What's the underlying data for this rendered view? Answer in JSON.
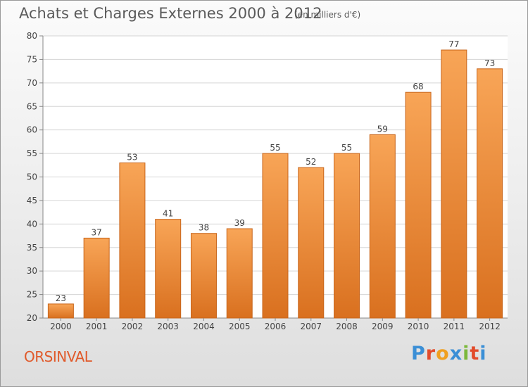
{
  "header": {
    "title": "Achats et Charges Externes 2000 à 2012",
    "subtitle": "(en milliers d'€)"
  },
  "footer": {
    "commune": "ORSINVAL",
    "brand": "Proxiti",
    "brand_letters": [
      "P",
      "r",
      "o",
      "x",
      "i",
      "t",
      "i"
    ]
  },
  "colors": {
    "bar_top": "#f8a557",
    "bar_bottom": "#d9701f",
    "bar_edge": "#c8661c",
    "grid": "#d5d5d5",
    "axis": "#888888",
    "text": "#444444",
    "commune": "#e05a2b"
  },
  "chart_data": {
    "type": "bar",
    "title": "Achats et Charges Externes 2000 à 2012",
    "subtitle": "(en milliers d'€)",
    "xlabel": "",
    "ylabel": "",
    "categories": [
      "2000",
      "2001",
      "2002",
      "2003",
      "2004",
      "2005",
      "2006",
      "2007",
      "2008",
      "2009",
      "2010",
      "2011",
      "2012"
    ],
    "values": [
      23,
      37,
      53,
      41,
      38,
      39,
      55,
      52,
      55,
      59,
      68,
      77,
      73
    ],
    "ylim": [
      20,
      80
    ],
    "yticks": [
      20,
      25,
      30,
      35,
      40,
      45,
      50,
      55,
      60,
      65,
      70,
      75,
      80
    ],
    "grid": true,
    "data_labels": true
  }
}
